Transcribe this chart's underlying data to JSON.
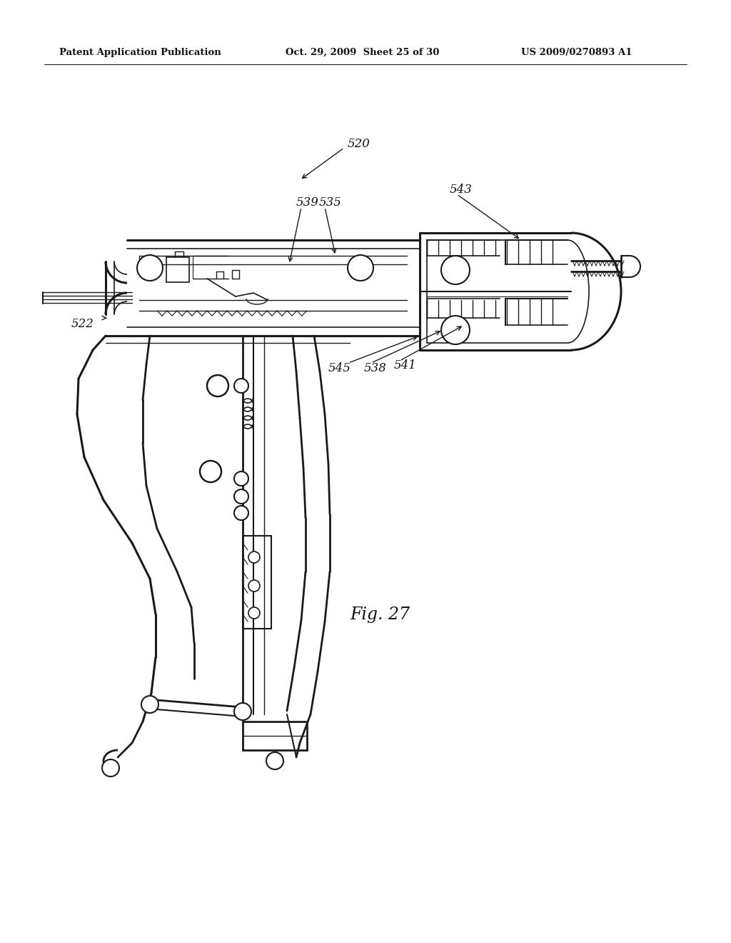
{
  "background_color": "#ffffff",
  "header_left": "Patent Application Publication",
  "header_center": "Oct. 29, 2009  Sheet 25 of 30",
  "header_right": "US 2009/0270893 A1",
  "figure_label": "Fig. 27",
  "line_color": "#1a1a1a",
  "text_color": "#111111"
}
